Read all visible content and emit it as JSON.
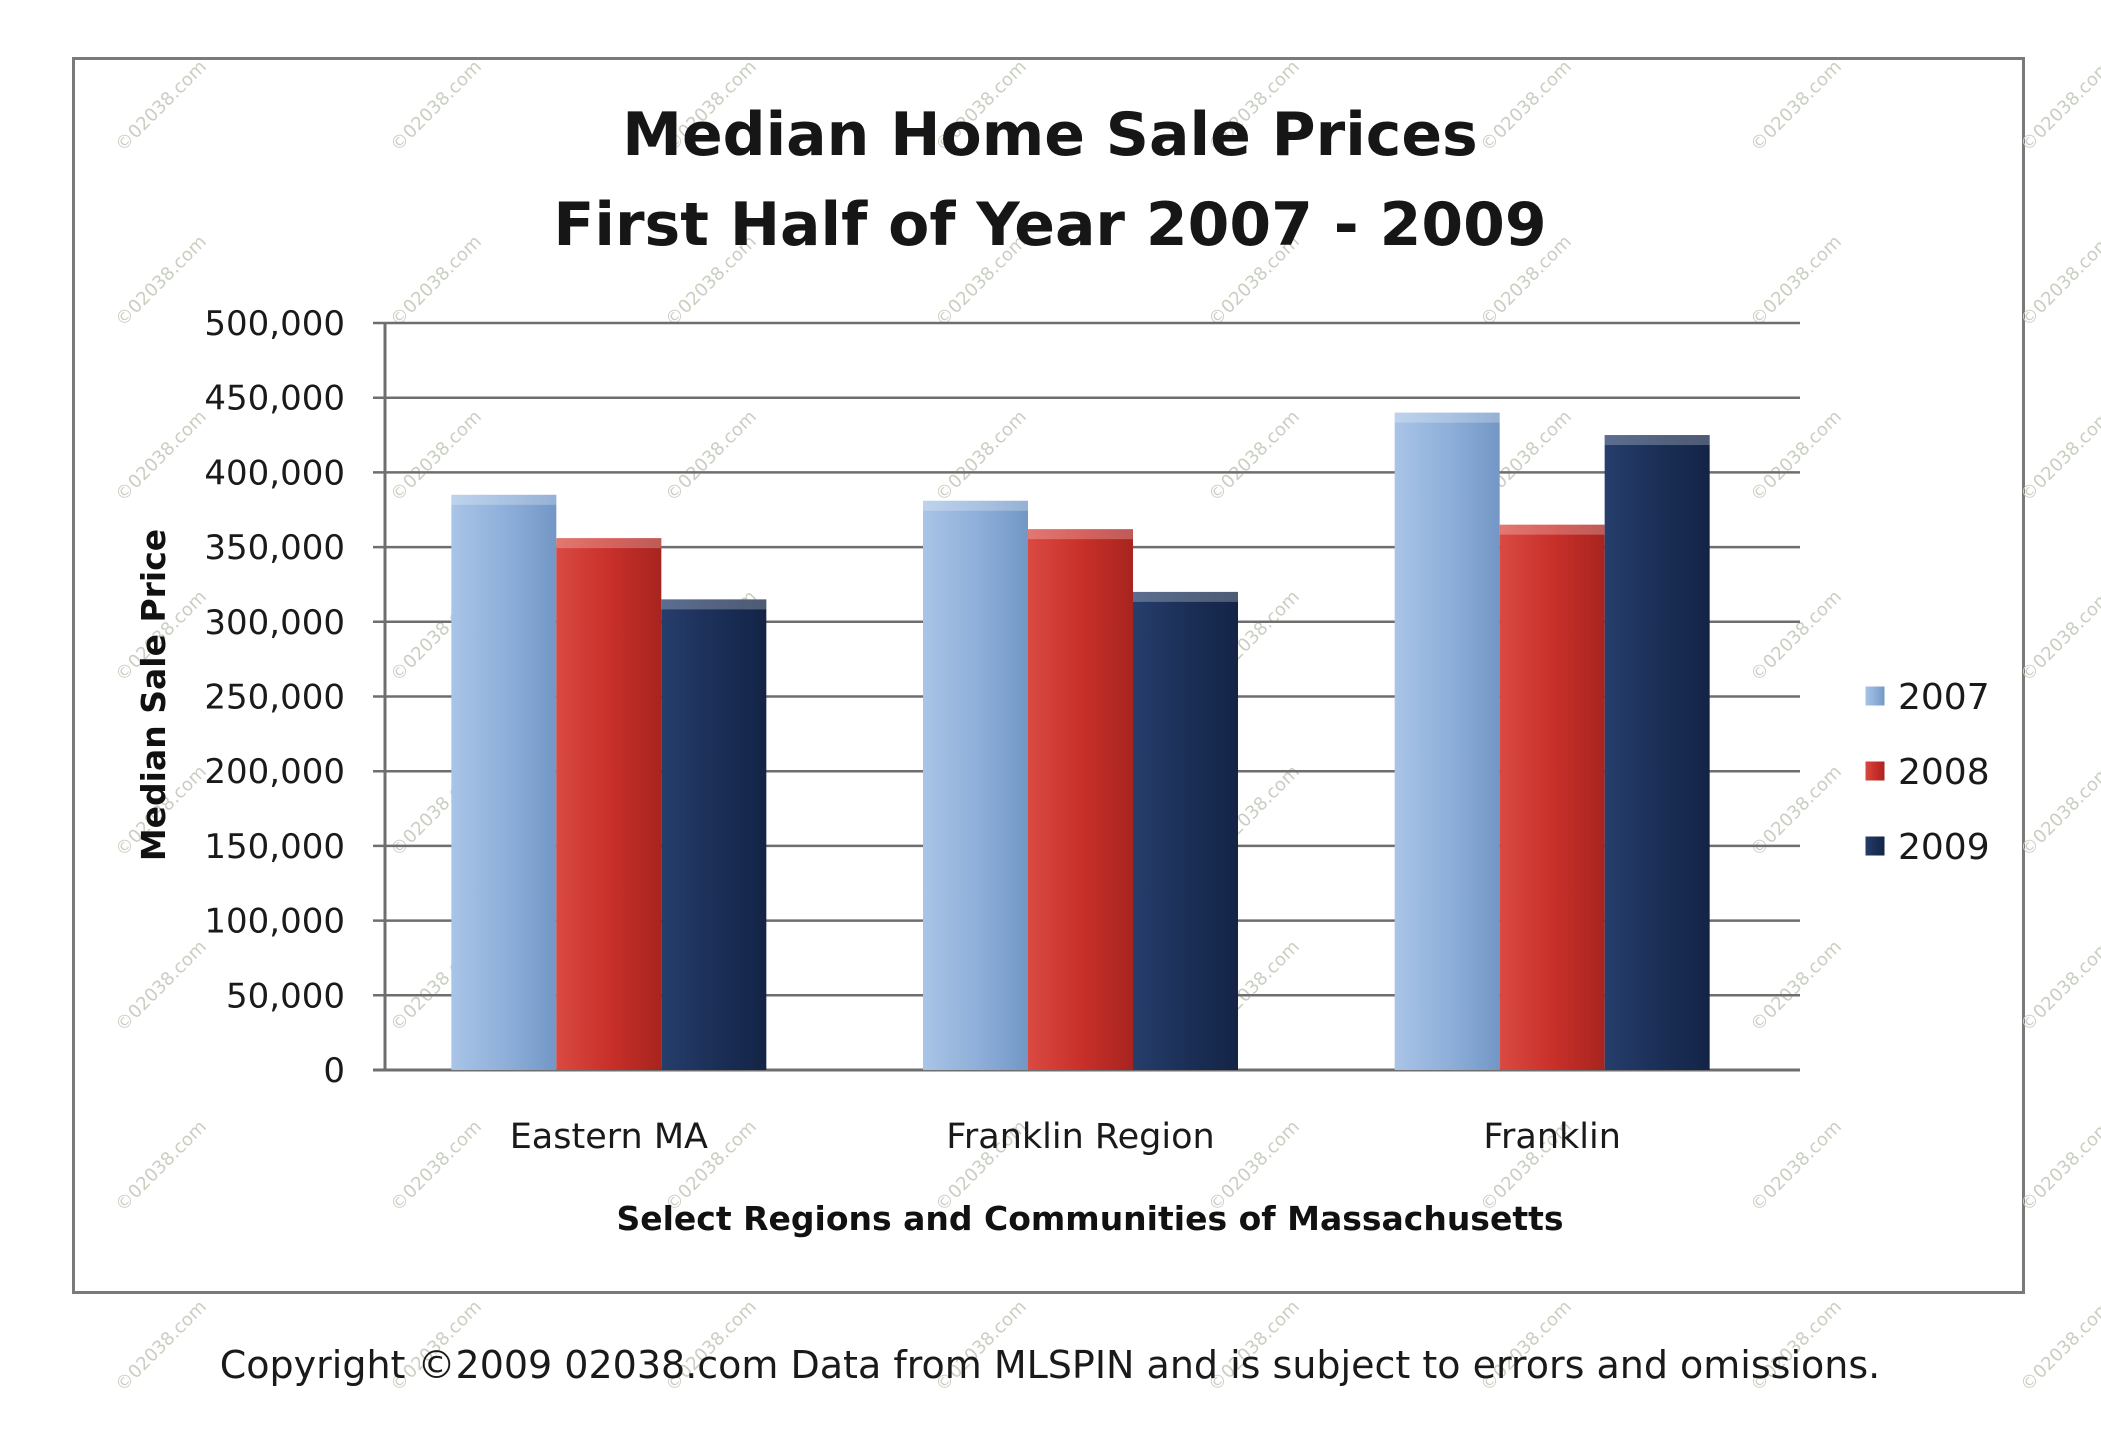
{
  "chart_data": {
    "type": "bar",
    "title": "Median Home Sale Prices",
    "subtitle": "First Half of Year 2007 - 2009",
    "xlabel": "Select Regions and Communities of Massachusetts",
    "ylabel": "Median Sale Price",
    "categories": [
      "Eastern MA",
      "Franklin Region",
      "Franklin"
    ],
    "series": [
      {
        "name": "2007",
        "values": [
          385000,
          381000,
          440000
        ],
        "color": "#8fb0da"
      },
      {
        "name": "2008",
        "values": [
          356000,
          362000,
          365000
        ],
        "color": "#c9302a"
      },
      {
        "name": "2009",
        "values": [
          315000,
          320000,
          425000
        ],
        "color": "#1b2f57"
      }
    ],
    "ylim": [
      0,
      500000
    ],
    "yticks": [
      "0",
      "50,000",
      "100,000",
      "150,000",
      "200,000",
      "250,000",
      "300,000",
      "350,000",
      "400,000",
      "450,000",
      "500,000"
    ],
    "grid": true,
    "legend_position": "right"
  },
  "footer": "Copyright ©2009 02038.com  Data from MLSPIN and is subject to errors and omissions.",
  "watermark": "©02038.com"
}
